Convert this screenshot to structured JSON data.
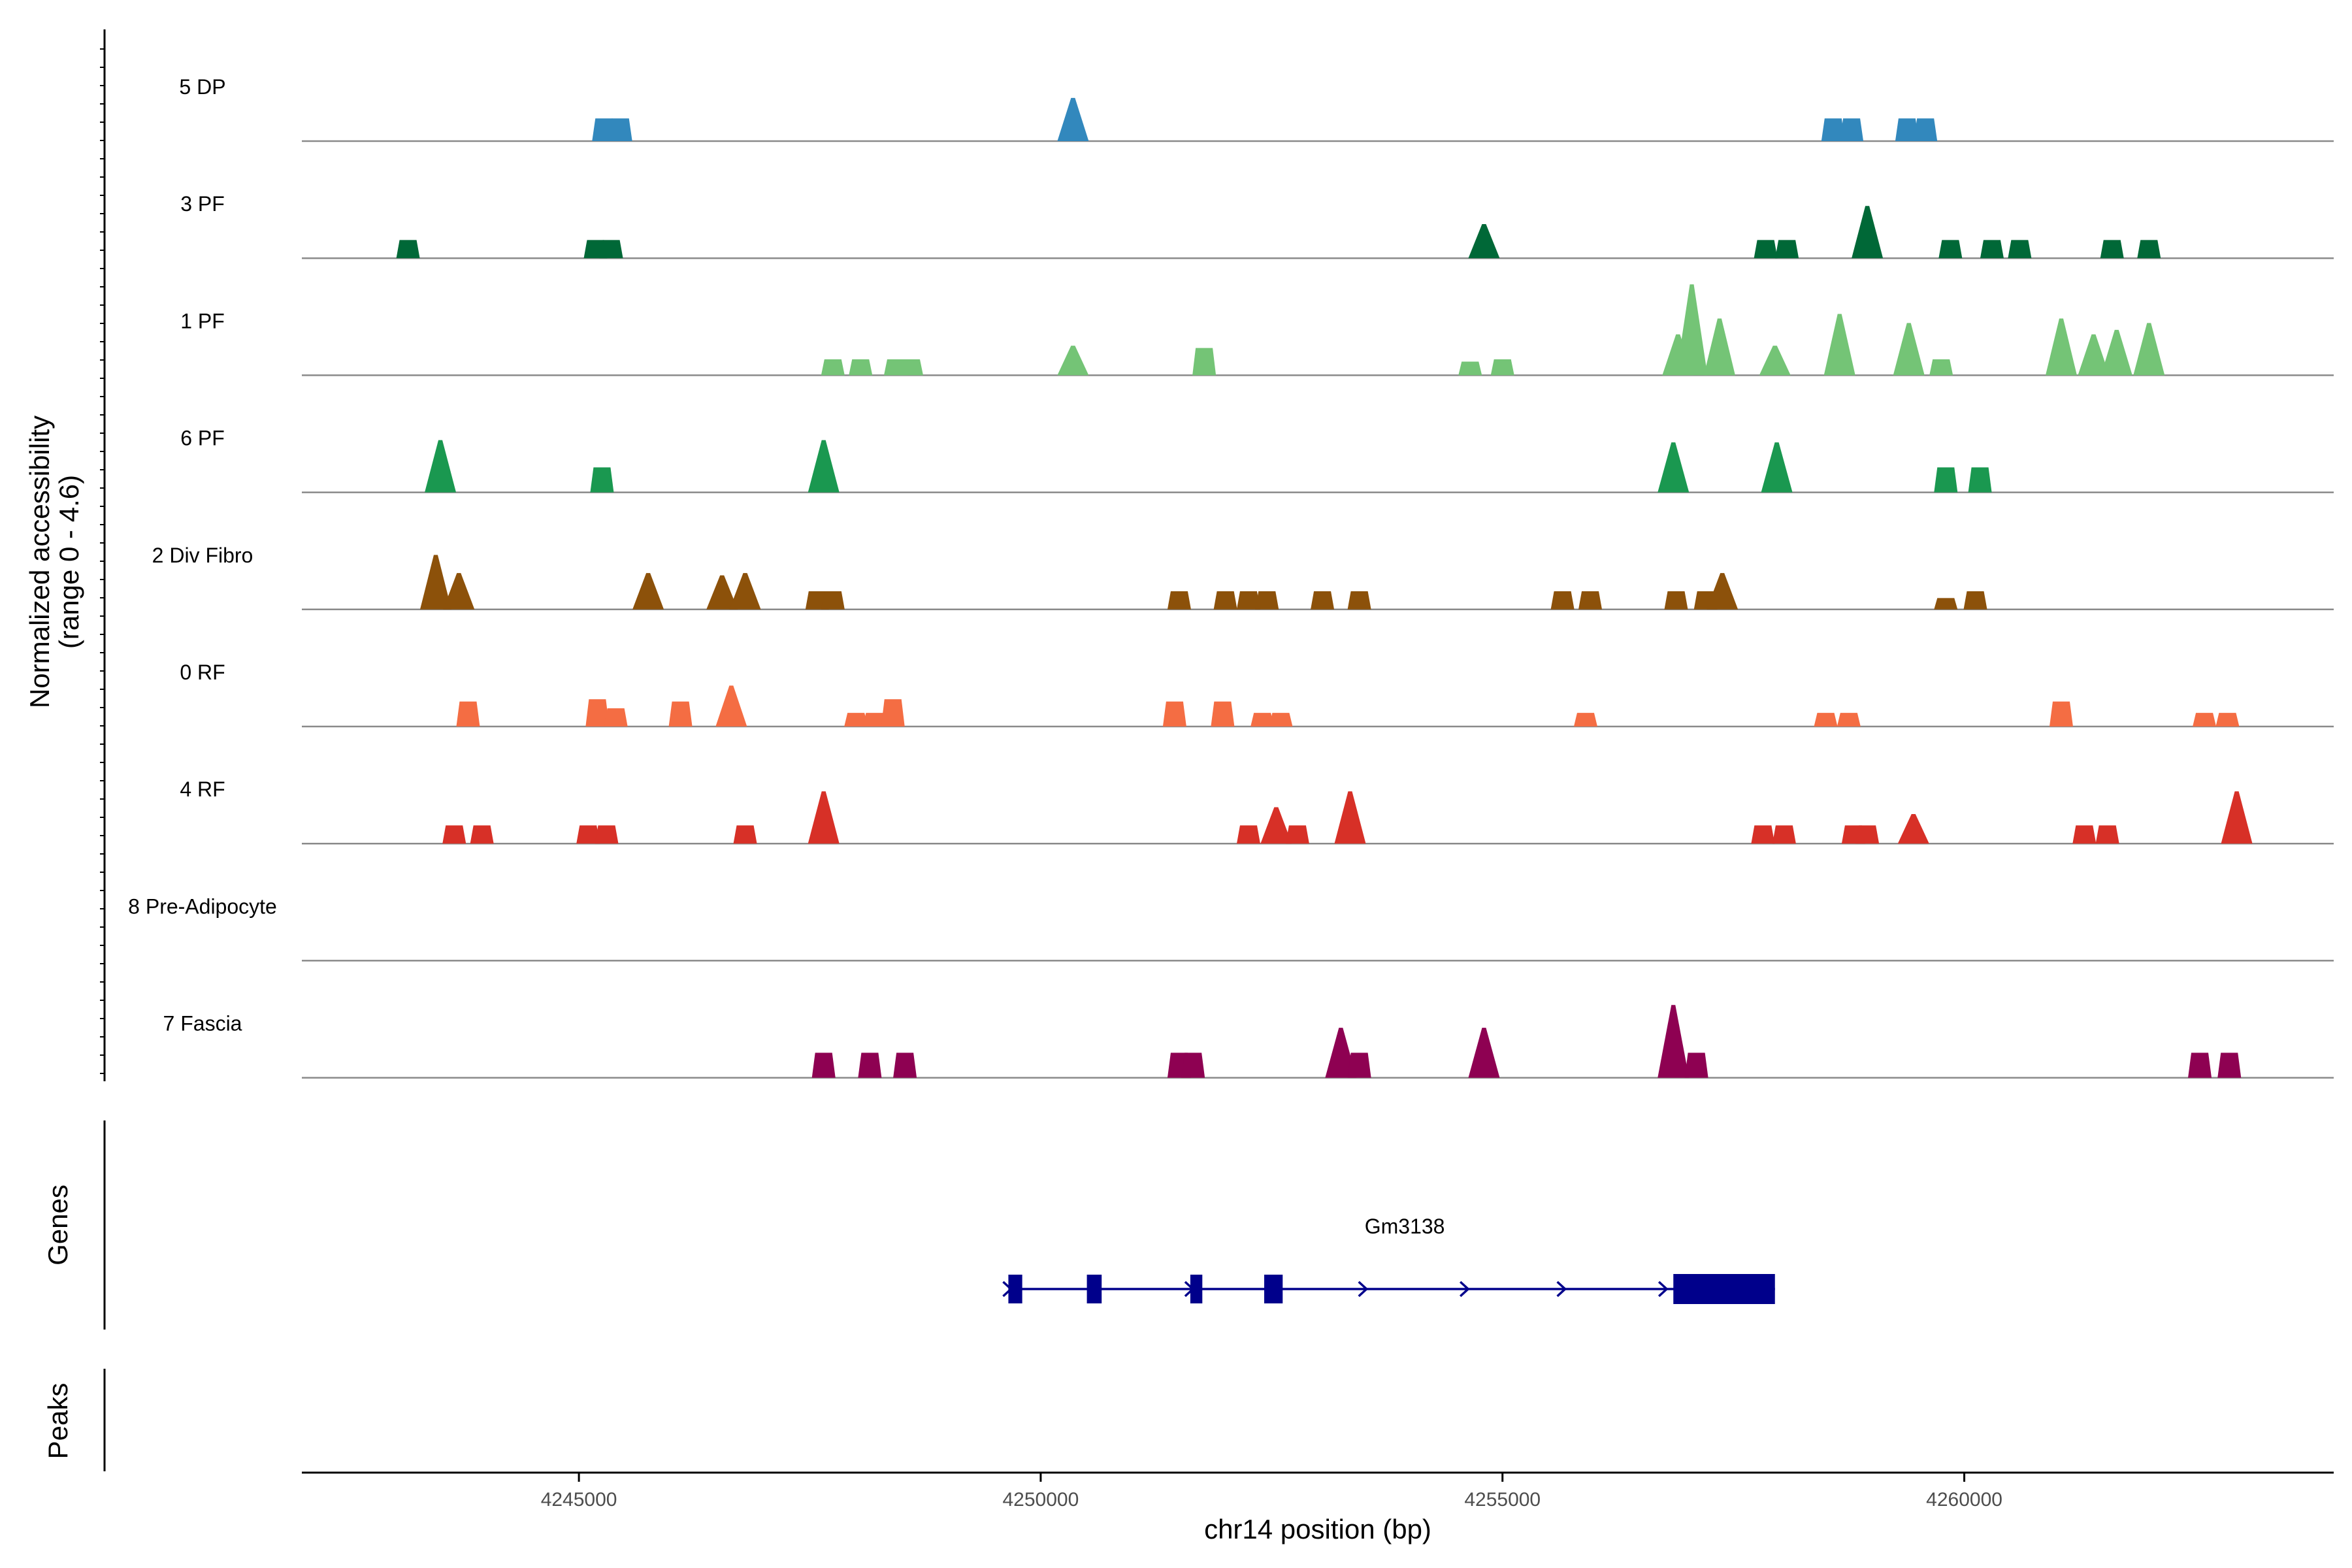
{
  "chart_data": {
    "type": "area",
    "y_axis_title_line1": "Normalized accessibility",
    "y_axis_title_line2": "(range 0 - 4.6)",
    "y_range": [
      0,
      4.6
    ],
    "x_axis_title": "chr14 position (bp)",
    "x_range": [
      4242000,
      4264000
    ],
    "x_ticks": [
      4245000,
      4250000,
      4255000,
      4260000
    ],
    "x_tick_labels": [
      "4245000",
      "4250000",
      "4255000",
      "4260000"
    ],
    "tracks": [
      {
        "label": "5 DP",
        "color": "#3288BD",
        "peaks": [
          [
            4245270,
            1.0
          ],
          [
            4245450,
            1.0
          ],
          [
            4250350,
            1.9
          ],
          [
            4258580,
            1.0
          ],
          [
            4258780,
            1.0
          ],
          [
            4259380,
            1.0
          ],
          [
            4259580,
            1.0
          ]
        ]
      },
      {
        "label": "3 PF",
        "color": "#006837",
        "peaks": [
          [
            4243150,
            0.8
          ],
          [
            4245180,
            0.8
          ],
          [
            4245350,
            0.8
          ],
          [
            4254800,
            1.5
          ],
          [
            4257850,
            0.8
          ],
          [
            4258080,
            0.8
          ],
          [
            4258950,
            2.3
          ],
          [
            4259850,
            0.8
          ],
          [
            4260300,
            0.8
          ],
          [
            4260600,
            0.8
          ],
          [
            4261600,
            0.8
          ],
          [
            4262000,
            0.8
          ]
        ]
      },
      {
        "label": "1 PF",
        "color": "#74C476",
        "peaks": [
          [
            4247750,
            0.7
          ],
          [
            4248050,
            0.7
          ],
          [
            4248430,
            0.7
          ],
          [
            4248600,
            0.7
          ],
          [
            4250350,
            1.3
          ],
          [
            4251770,
            1.2
          ],
          [
            4254650,
            0.6
          ],
          [
            4255000,
            0.7
          ],
          [
            4256900,
            1.8
          ],
          [
            4257050,
            4.0
          ],
          [
            4257350,
            2.5
          ],
          [
            4257950,
            1.3
          ],
          [
            4258650,
            2.7
          ],
          [
            4259400,
            2.3
          ],
          [
            4259750,
            0.7
          ],
          [
            4261050,
            2.5
          ],
          [
            4261400,
            1.8
          ],
          [
            4261650,
            2.0
          ],
          [
            4262000,
            2.3
          ]
        ]
      },
      {
        "label": "6 PF",
        "color": "#1A9850",
        "peaks": [
          [
            4243500,
            2.3
          ],
          [
            4245250,
            1.1
          ],
          [
            4247650,
            2.3
          ],
          [
            4256850,
            2.2
          ],
          [
            4257970,
            2.2
          ],
          [
            4259800,
            1.1
          ],
          [
            4260170,
            1.1
          ]
        ]
      },
      {
        "label": "2 Div Fibro",
        "color": "#8C510A",
        "peaks": [
          [
            4243450,
            2.4
          ],
          [
            4243700,
            1.6
          ],
          [
            4245750,
            1.6
          ],
          [
            4246550,
            1.5
          ],
          [
            4246800,
            1.6
          ],
          [
            4247580,
            0.8
          ],
          [
            4247750,
            0.8
          ],
          [
            4251500,
            0.8
          ],
          [
            4252000,
            0.8
          ],
          [
            4252250,
            0.8
          ],
          [
            4252450,
            0.8
          ],
          [
            4253050,
            0.8
          ],
          [
            4253450,
            0.8
          ],
          [
            4255650,
            0.8
          ],
          [
            4255950,
            0.8
          ],
          [
            4256880,
            0.8
          ],
          [
            4257200,
            0.8
          ],
          [
            4257380,
            1.6
          ],
          [
            4259800,
            0.5
          ],
          [
            4260120,
            0.8
          ]
        ]
      },
      {
        "label": "0 RF",
        "color": "#F46D43",
        "peaks": [
          [
            4243800,
            1.1
          ],
          [
            4245200,
            1.2
          ],
          [
            4245400,
            0.8
          ],
          [
            4246100,
            1.1
          ],
          [
            4246650,
            1.8
          ],
          [
            4248000,
            0.6
          ],
          [
            4248200,
            0.6
          ],
          [
            4248400,
            1.2
          ],
          [
            4251450,
            1.1
          ],
          [
            4251970,
            1.1
          ],
          [
            4252400,
            0.6
          ],
          [
            4252600,
            0.6
          ],
          [
            4255900,
            0.6
          ],
          [
            4258500,
            0.6
          ],
          [
            4258750,
            0.6
          ],
          [
            4261050,
            1.1
          ],
          [
            4262600,
            0.6
          ],
          [
            4262850,
            0.6
          ]
        ]
      },
      {
        "label": "4 RF",
        "color": "#D73027",
        "peaks": [
          [
            4243650,
            0.8
          ],
          [
            4243950,
            0.8
          ],
          [
            4245100,
            0.8
          ],
          [
            4245300,
            0.8
          ],
          [
            4246800,
            0.8
          ],
          [
            4247650,
            2.3
          ],
          [
            4252250,
            0.8
          ],
          [
            4252550,
            1.6
          ],
          [
            4252780,
            0.8
          ],
          [
            4253350,
            2.3
          ],
          [
            4257820,
            0.8
          ],
          [
            4258050,
            0.8
          ],
          [
            4258800,
            0.8
          ],
          [
            4258950,
            0.8
          ],
          [
            4259450,
            1.3
          ],
          [
            4261300,
            0.8
          ],
          [
            4261550,
            0.8
          ],
          [
            4262950,
            2.3
          ]
        ]
      },
      {
        "label": "8 Pre-Adipocyte",
        "color": "#7F7F7F",
        "peaks": []
      },
      {
        "label": "7 Fascia",
        "color": "#8E0152",
        "peaks": [
          [
            4247650,
            1.1
          ],
          [
            4248150,
            1.1
          ],
          [
            4248530,
            1.1
          ],
          [
            4251500,
            1.1
          ],
          [
            4251650,
            1.1
          ],
          [
            4253250,
            2.2
          ],
          [
            4253450,
            1.1
          ],
          [
            4254800,
            2.2
          ],
          [
            4256850,
            3.2
          ],
          [
            4257100,
            1.1
          ],
          [
            4262550,
            1.1
          ],
          [
            4262870,
            1.1
          ]
        ]
      }
    ],
    "genes_title": "Genes",
    "gene": {
      "name": "Gm3138",
      "color": "#00008B",
      "start": 4249650,
      "end": 4257950,
      "exons": [
        [
          4249650,
          4249800,
          "thin"
        ],
        [
          4250500,
          4250660,
          "thin"
        ],
        [
          4251620,
          4251750,
          "thin"
        ],
        [
          4252420,
          4252620,
          "thin"
        ],
        [
          4256850,
          4257950,
          "thick"
        ]
      ],
      "arrows": [
        4249650,
        4251620,
        4253500,
        4254600,
        4255650,
        4256750
      ]
    },
    "peaks_title": "Peaks"
  }
}
